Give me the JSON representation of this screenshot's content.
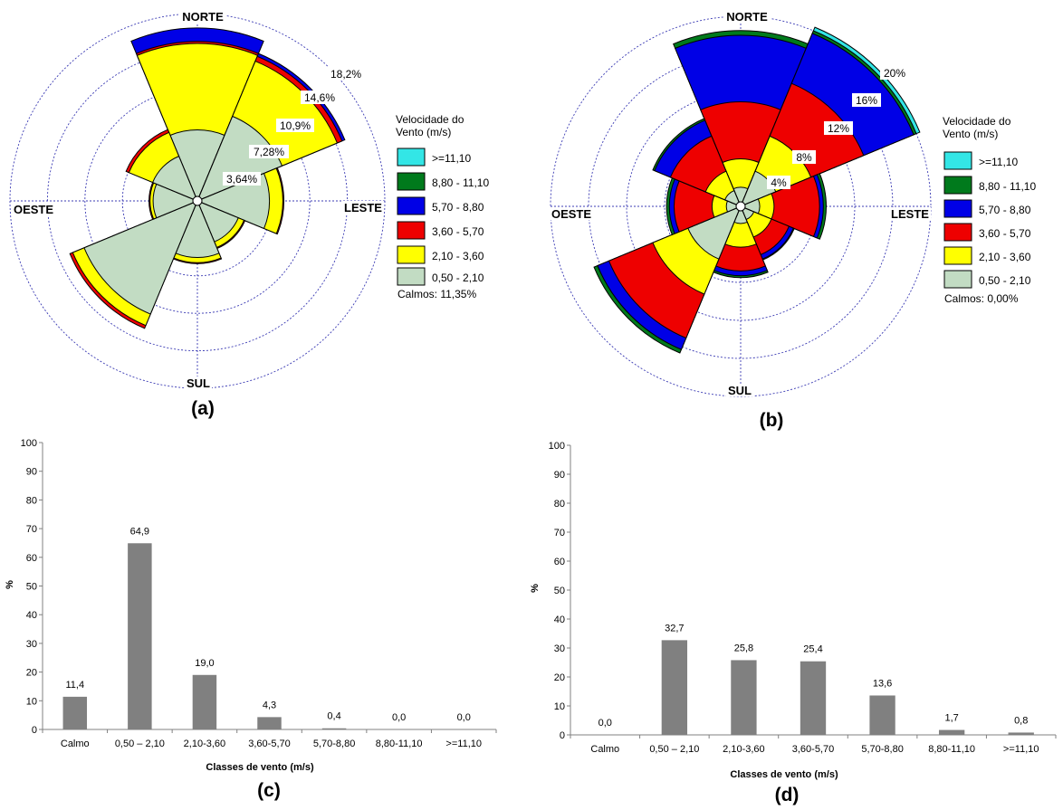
{
  "colors": {
    "ge11": "#33e6e6",
    "c880": "#007a1c",
    "c570": "#0000e6",
    "c360": "#ee0000",
    "c210": "#ffff00",
    "c050": "#c2dcc3",
    "bar": "#808080",
    "grid": "#3c3cb4"
  },
  "roses": [
    {
      "panel_label": "(a)",
      "directions": [
        "NORTE",
        "LESTE",
        "SUL",
        "OESTE"
      ],
      "ring_labels": [
        "3,64%",
        "7,28%",
        "10,9%",
        "14,6%",
        "18,2%"
      ],
      "legend_title": [
        "Velocidade do",
        "Vento (m/s)"
      ],
      "legend_items": [
        ">=11,10",
        "8,80 - 11,10",
        "5,70 - 8,80",
        "3,60 - 5,70",
        "2,10 - 3,60",
        "0,50 - 2,10"
      ],
      "calm_text": "Calmos: 11,35%",
      "sectors": [
        {
          "dir": "N",
          "values": [
            6.9,
            8.4,
            0.2,
            1.3,
            0,
            0
          ]
        },
        {
          "dir": "NE",
          "values": [
            8.9,
            5.8,
            0.5,
            0.3,
            0,
            0
          ]
        },
        {
          "dir": "E",
          "values": [
            7.0,
            1.3,
            0.1,
            0,
            0,
            0
          ]
        },
        {
          "dir": "SE",
          "values": [
            4.3,
            0.6,
            0.1,
            0,
            0,
            0
          ]
        },
        {
          "dir": "S",
          "values": [
            5.5,
            0.5,
            0.1,
            0,
            0,
            0
          ]
        },
        {
          "dir": "SW",
          "values": [
            11.9,
            1.2,
            0.3,
            0,
            0,
            0
          ]
        },
        {
          "dir": "W",
          "values": [
            4.3,
            0.3,
            0.1,
            0,
            0,
            0
          ]
        },
        {
          "dir": "NW",
          "values": [
            4.7,
            2.5,
            0.3,
            0,
            0,
            0
          ]
        }
      ]
    },
    {
      "panel_label": "(b)",
      "directions": [
        "NORTE",
        "LESTE",
        "SUL",
        "OESTE"
      ],
      "ring_labels": [
        "4%",
        "8%",
        "12%",
        "16%",
        "20%"
      ],
      "legend_title": [
        "Velocidade do",
        "Vento (m/s)"
      ],
      "legend_items": [
        ">=11,10",
        "8,80 - 11,10",
        "5,70 - 8,80",
        "3,60 - 5,70",
        "2,10 - 3,60",
        "0,50 - 2,10"
      ],
      "calm_text": "Calmos: 0,00%",
      "sectors": [
        {
          "dir": "N",
          "values": [
            2.0,
            3.0,
            6.0,
            7.0,
            0.5,
            0
          ]
        },
        {
          "dir": "NE",
          "values": [
            4.0,
            4.0,
            6.0,
            5.7,
            0.3,
            0.4
          ]
        },
        {
          "dir": "E",
          "values": [
            2.0,
            1.5,
            4.8,
            0.4,
            0.3,
            0
          ]
        },
        {
          "dir": "SE",
          "values": [
            1.5,
            2.0,
            2.0,
            0.5,
            0.1,
            0
          ]
        },
        {
          "dir": "S",
          "values": [
            1.8,
            2.5,
            2.5,
            0.5,
            0.2,
            0
          ]
        },
        {
          "dir": "SW",
          "values": [
            6.0,
            4.0,
            5.0,
            1.3,
            0.4,
            0
          ]
        },
        {
          "dir": "W",
          "values": [
            1.5,
            1.5,
            4.0,
            0.5,
            0.3,
            0
          ]
        },
        {
          "dir": "NW",
          "values": [
            1.8,
            2.2,
            4.0,
            1.8,
            0.2,
            0
          ]
        }
      ]
    }
  ],
  "chart_data": [
    {
      "type": "bar",
      "panel_label": "(c)",
      "categories": [
        "Calmo",
        "0,50 – 2,10",
        "2,10-3,60",
        "3,60-5,70",
        "5,70-8,80",
        "8,80-11,10",
        ">=11,10"
      ],
      "values": [
        11.4,
        64.9,
        19.0,
        4.3,
        0.4,
        0.0,
        0.0
      ],
      "data_labels": [
        "11,4",
        "64,9",
        "19,0",
        "4,3",
        "0,4",
        "0,0",
        "0,0"
      ],
      "ylabel": "%",
      "xlabel": "Classes de vento (m/s)",
      "ylim": [
        0,
        100
      ],
      "yticks": [
        "0",
        "10",
        "20",
        "30",
        "40",
        "50",
        "60",
        "70",
        "80",
        "90",
        "100"
      ]
    },
    {
      "type": "bar",
      "panel_label": "(d)",
      "categories": [
        "Calmo",
        "0,50 – 2,10",
        "2,10-3,60",
        "3,60-5,70",
        "5,70-8,80",
        "8,80-11,10",
        ">=11,10"
      ],
      "values": [
        0.0,
        32.7,
        25.8,
        25.4,
        13.6,
        1.7,
        0.8
      ],
      "data_labels": [
        "0,0",
        "32,7",
        "25,8",
        "25,4",
        "13,6",
        "1,7",
        "0,8"
      ],
      "ylabel": "%",
      "xlabel": "Classes de vento (m/s)",
      "ylim": [
        0,
        100
      ],
      "yticks": [
        "0",
        "10",
        "20",
        "30",
        "40",
        "50",
        "60",
        "70",
        "80",
        "90",
        "100"
      ]
    }
  ]
}
